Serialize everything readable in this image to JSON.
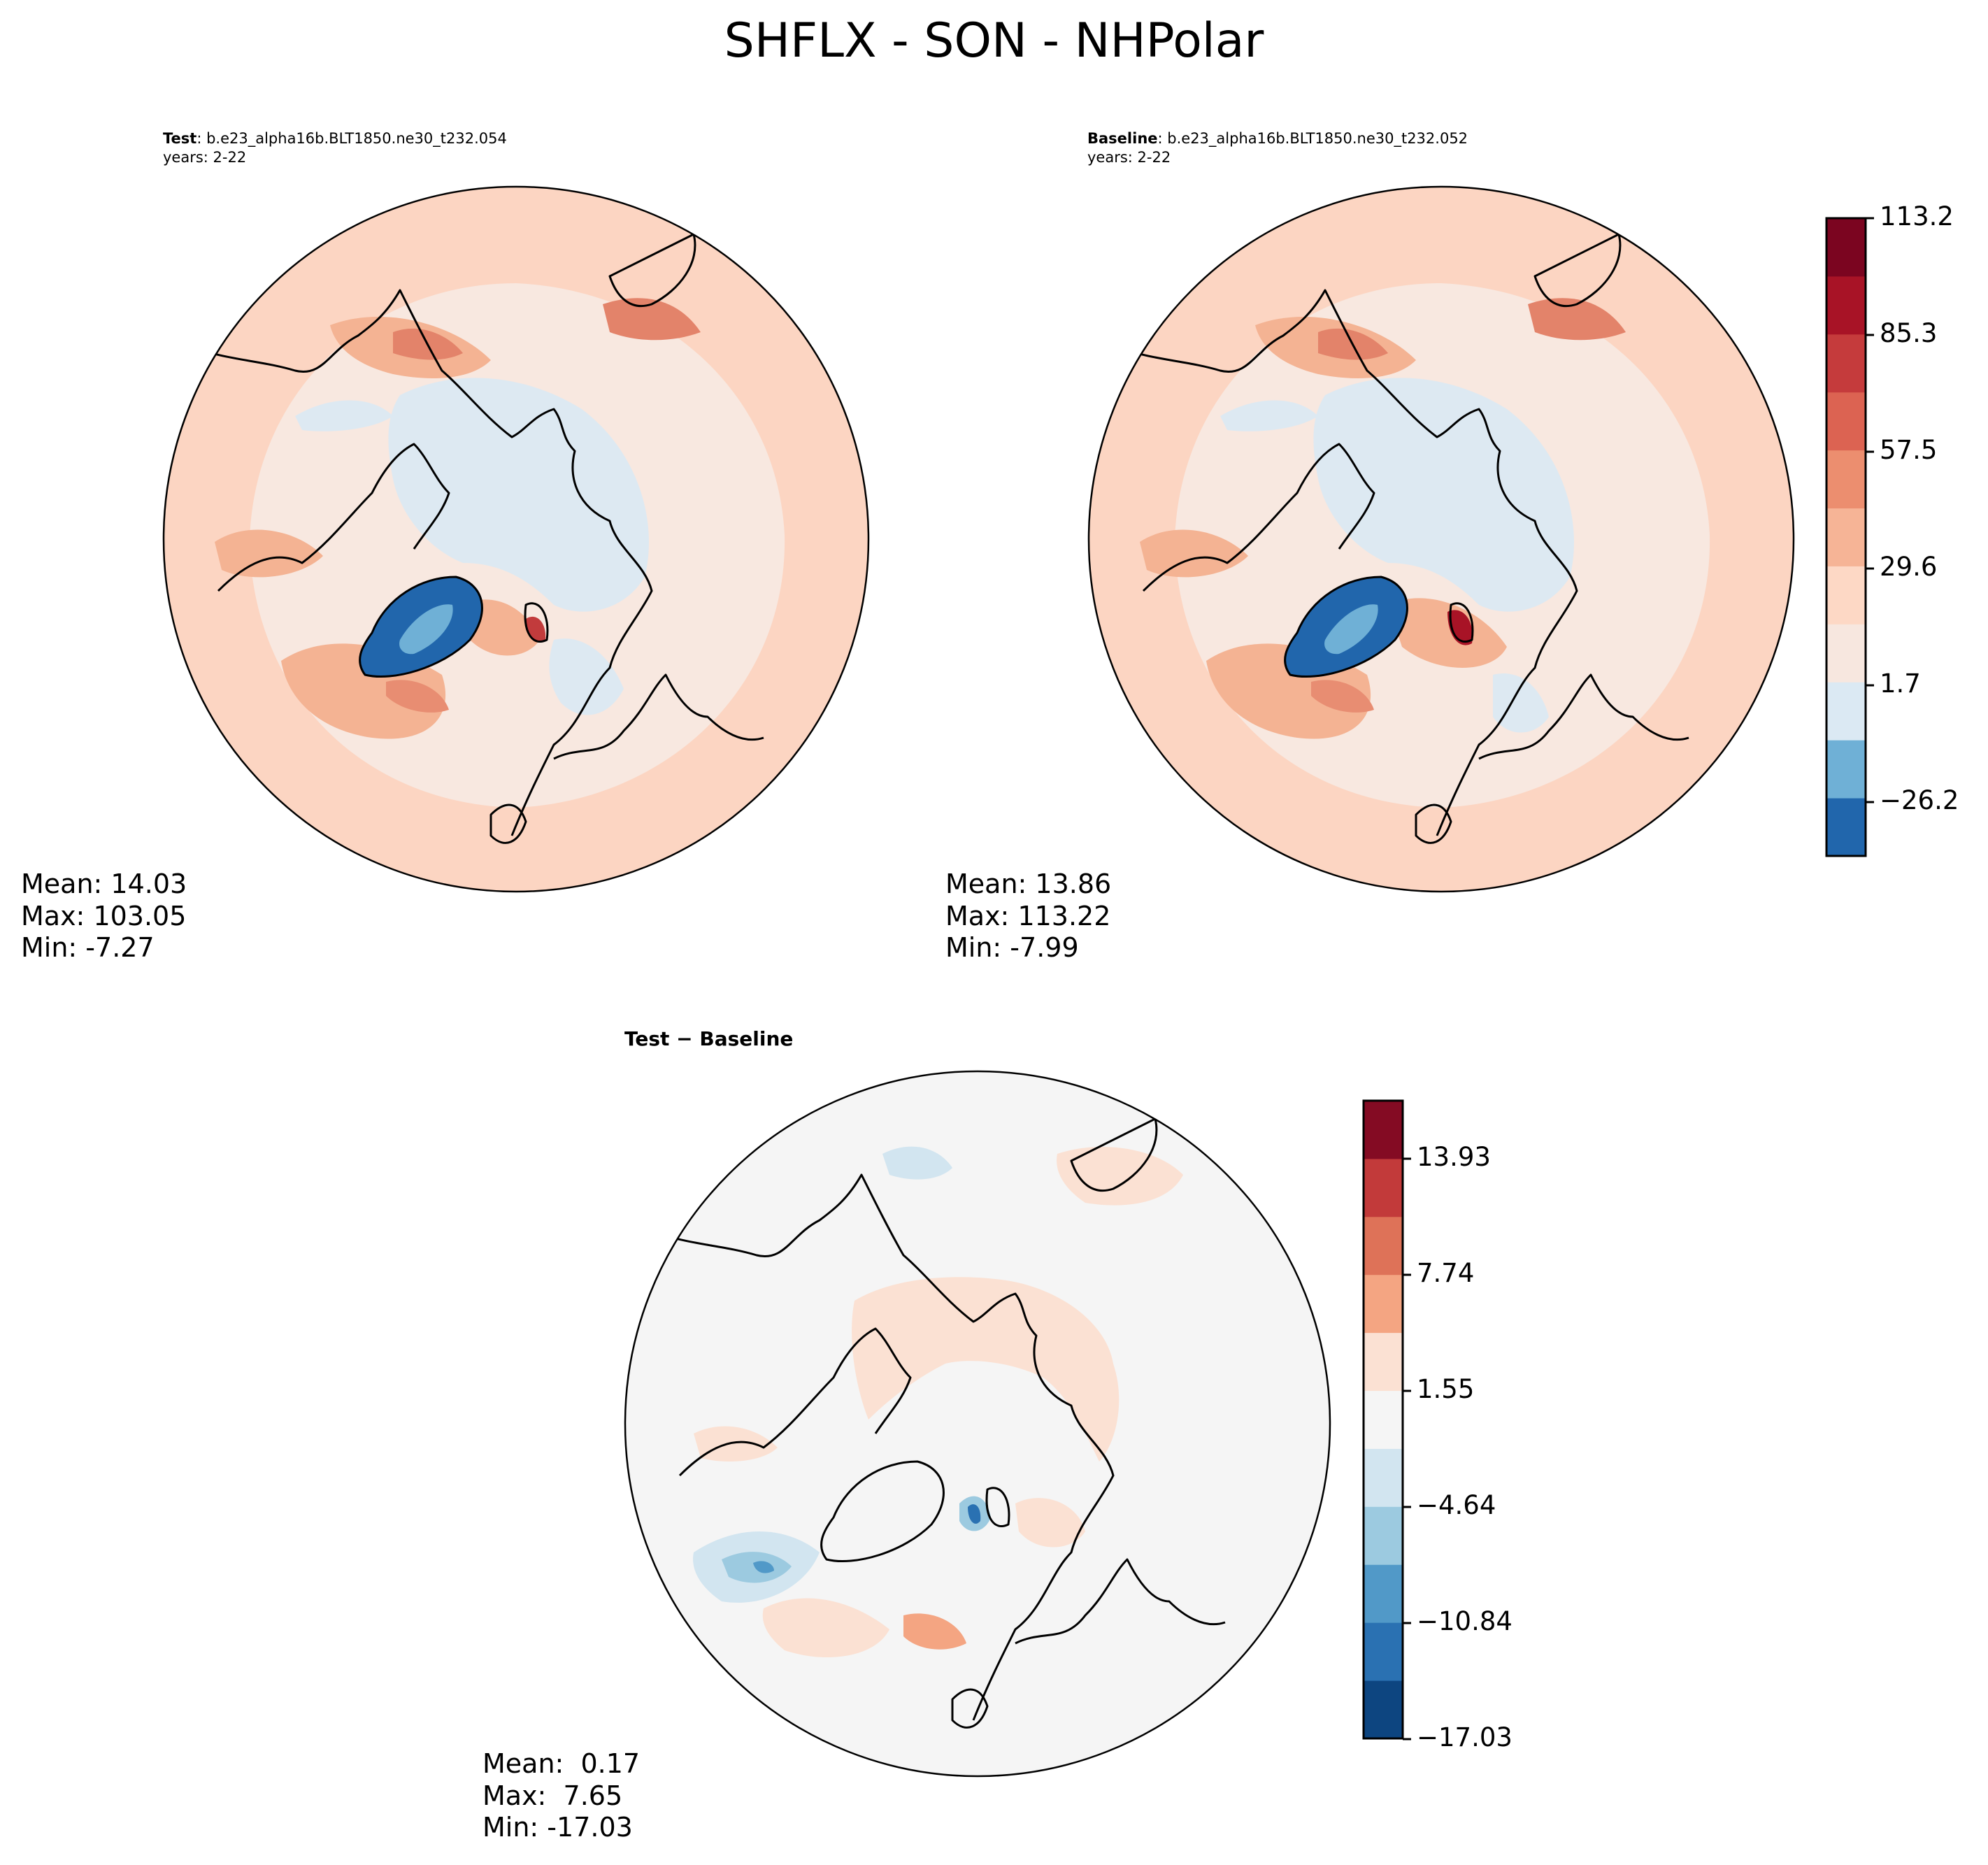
{
  "figure": {
    "title": "SHFLX - SON - NHPolar"
  },
  "panels": [
    {
      "id": "test",
      "label": "Test",
      "case": ": b.e23_alpha16b.BLT1850.ne30_t232.054",
      "years": "years: 2-22",
      "stats": {
        "mean": "Mean: 14.03",
        "max": "Max: 103.05",
        "min": "Min: -7.27"
      }
    },
    {
      "id": "baseline",
      "label": "Baseline",
      "case": ": b.e23_alpha16b.BLT1850.ne30_t232.052",
      "years": "years: 2-22",
      "stats": {
        "mean": "Mean: 13.86",
        "max": "Max: 113.22",
        "min": "Min: -7.99"
      }
    },
    {
      "id": "difference",
      "title": "Test − Baseline",
      "stats": {
        "mean": "Mean:  0.17",
        "max": "Max:  7.65",
        "min": "Min: -17.03"
      }
    }
  ],
  "colorbars": {
    "main": {
      "tick_labels": [
        "113.2",
        "85.3",
        "57.5",
        "29.6",
        "1.7",
        "−26.2"
      ],
      "colors": [
        "#2166ac",
        "#6fb0d6",
        "#dbe9f3",
        "#f7e7df",
        "#fdd8c5",
        "#f6b496",
        "#ec8e6f",
        "#dc6352",
        "#c53b3c",
        "#a81326",
        "#7b0520"
      ]
    },
    "difference": {
      "tick_labels": [
        "13.93",
        "7.74",
        "1.55",
        "−4.64",
        "−10.84",
        "−17.03"
      ],
      "colors": [
        "#0d4580",
        "#2a71b2",
        "#5199c8",
        "#9ccae0",
        "#d2e5f0",
        "#f5f5f5",
        "#fbe1d3",
        "#f4a582",
        "#de7258",
        "#c23a3a",
        "#840b23"
      ]
    }
  },
  "colors": {
    "ocean_main": "#f8e8e0",
    "ocean_diff": "#f5f5f5",
    "coast": "#000000"
  }
}
